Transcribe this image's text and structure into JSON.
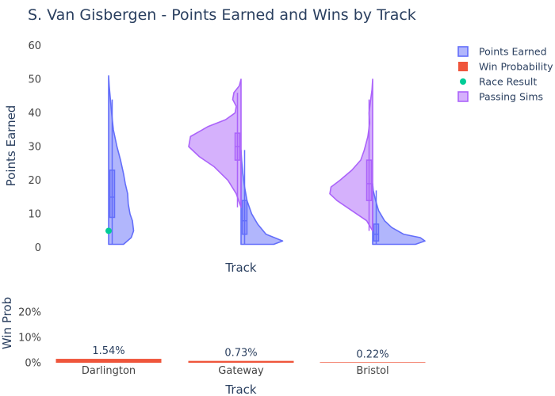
{
  "chart_data": {
    "title": "S. Van Gisbergen - Points Earned and Wins by Track",
    "legend": {
      "placement": "top-right",
      "items": [
        {
          "label": "Points Earned",
          "color": "#636efa",
          "symbol": "box"
        },
        {
          "label": "Win Probability",
          "color": "#ef553b",
          "symbol": "square"
        },
        {
          "label": "Race Result",
          "color": "#00cc96",
          "symbol": "dot"
        },
        {
          "label": "Passing Sims",
          "color": "#ab63fa",
          "symbol": "box"
        }
      ]
    },
    "violin": {
      "type": "violin",
      "xlabel": "Track",
      "ylabel": "Points Earned",
      "ylim": [
        -1,
        62
      ],
      "yticks": [
        0,
        10,
        20,
        30,
        40,
        50,
        60
      ],
      "categories": [
        "Darlington",
        "Gateway",
        "Bristol"
      ],
      "series": [
        {
          "name": "Points Earned",
          "side": "positive",
          "color": "#636efa",
          "traces": [
            {
              "track": "Darlington",
              "profile": [
                [
                  1,
                  0.25
                ],
                [
                  3,
                  0.38
                ],
                [
                  5,
                  0.42
                ],
                [
                  8,
                  0.4
                ],
                [
                  10,
                  0.36
                ],
                [
                  13,
                  0.33
                ],
                [
                  16,
                  0.32
                ],
                [
                  19,
                  0.28
                ],
                [
                  22,
                  0.25
                ],
                [
                  26,
                  0.2
                ],
                [
                  30,
                  0.14
                ],
                [
                  35,
                  0.08
                ],
                [
                  40,
                  0.05
                ],
                [
                  44,
                  0.03
                ],
                [
                  48,
                  0.01
                ],
                [
                  51,
                  0.0
                ]
              ],
              "q1": 9,
              "median": 15,
              "q3": 23,
              "whisker_low": 1,
              "whisker_high": 44
            },
            {
              "track": "Gateway",
              "profile": [
                [
                  1,
                  0.55
                ],
                [
                  2,
                  0.7
                ],
                [
                  4,
                  0.42
                ],
                [
                  7,
                  0.28
                ],
                [
                  10,
                  0.18
                ],
                [
                  14,
                  0.1
                ],
                [
                  18,
                  0.06
                ],
                [
                  22,
                  0.03
                ],
                [
                  26,
                  0.01
                ],
                [
                  29,
                  0.0
                ]
              ],
              "q1": 4,
              "median": 8,
              "q3": 14,
              "whisker_low": 1,
              "whisker_high": 29
            },
            {
              "track": "Bristol",
              "profile": [
                [
                  1,
                  0.72
                ],
                [
                  2,
                  0.88
                ],
                [
                  3,
                  0.8
                ],
                [
                  4,
                  0.52
                ],
                [
                  6,
                  0.32
                ],
                [
                  8,
                  0.2
                ],
                [
                  11,
                  0.1
                ],
                [
                  14,
                  0.05
                ],
                [
                  17,
                  0.01
                ],
                [
                  19,
                  0.0
                ]
              ],
              "q1": 2,
              "median": 4,
              "q3": 7,
              "whisker_low": 1,
              "whisker_high": 17
            }
          ]
        },
        {
          "name": "Passing Sims",
          "side": "negative",
          "color": "#ab63fa",
          "traces": [
            {
              "track": "Gateway",
              "profile": [
                [
                  12,
                  0.0
                ],
                [
                  16,
                  0.08
                ],
                [
                  20,
                  0.22
                ],
                [
                  24,
                  0.45
                ],
                [
                  27,
                  0.7
                ],
                [
                  30,
                  0.88
                ],
                [
                  33,
                  0.85
                ],
                [
                  36,
                  0.55
                ],
                [
                  38,
                  0.26
                ],
                [
                  40,
                  0.1
                ],
                [
                  42,
                  0.08
                ],
                [
                  44,
                  0.14
                ],
                [
                  46,
                  0.12
                ],
                [
                  48,
                  0.03
                ],
                [
                  50,
                  0.0
                ]
              ],
              "q1": 26,
              "median": 30,
              "q3": 34,
              "whisker_low": 12,
              "whisker_high": 46
            },
            {
              "track": "Bristol",
              "profile": [
                [
                  5,
                  0.0
                ],
                [
                  8,
                  0.1
                ],
                [
                  11,
                  0.35
                ],
                [
                  14,
                  0.6
                ],
                [
                  16,
                  0.72
                ],
                [
                  18,
                  0.7
                ],
                [
                  20,
                  0.55
                ],
                [
                  23,
                  0.35
                ],
                [
                  26,
                  0.2
                ],
                [
                  29,
                  0.14
                ],
                [
                  33,
                  0.08
                ],
                [
                  37,
                  0.05
                ],
                [
                  40,
                  0.06
                ],
                [
                  43,
                  0.04
                ],
                [
                  47,
                  0.01
                ],
                [
                  50,
                  0.0
                ]
              ],
              "q1": 14,
              "median": 19,
              "q3": 26,
              "whisker_low": 5,
              "whisker_high": 44
            }
          ]
        }
      ],
      "points": [
        {
          "name": "Race Result",
          "track": "Darlington",
          "value": 5,
          "color": "#00cc96"
        }
      ]
    },
    "win_probability": {
      "type": "bar",
      "xlabel": "Track",
      "ylabel": "Win Prob",
      "categories": [
        "Darlington",
        "Gateway",
        "Bristol"
      ],
      "values": [
        1.54,
        0.73,
        0.22
      ],
      "labels": [
        "1.54%",
        "0.73%",
        "0.22%"
      ],
      "ylim": [
        0,
        25
      ],
      "yticks": [
        0,
        10,
        20
      ],
      "ytick_labels": [
        "0%",
        "10%",
        "20%"
      ],
      "color": "#ef553b"
    }
  }
}
